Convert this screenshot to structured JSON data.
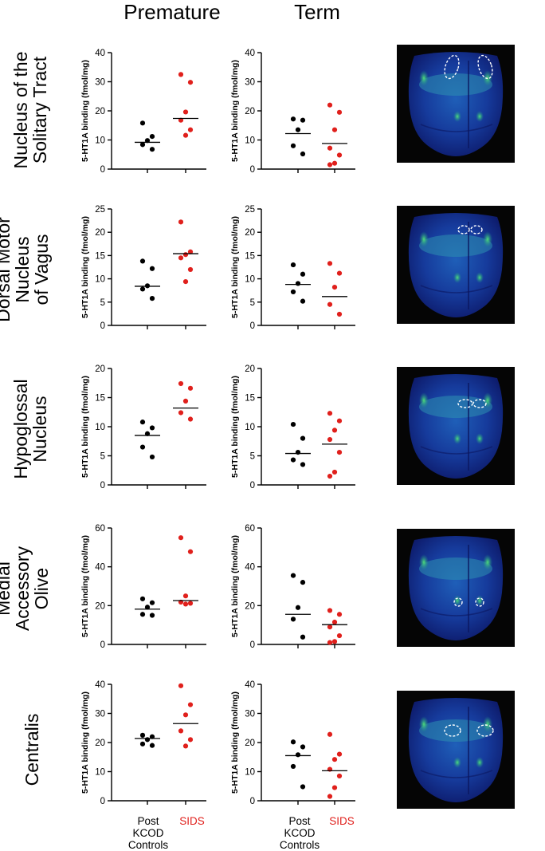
{
  "column_titles": [
    "Premature",
    "Term"
  ],
  "row_labels": [
    [
      "Nucleus of the",
      "Solitary Tract"
    ],
    [
      "Dorsal Motor",
      "Nucleus",
      "of Vagus"
    ],
    [
      "Hypoglossal",
      "Nucleus"
    ],
    [
      "Medial",
      "Accessory",
      "Olive"
    ],
    [
      "Centralis"
    ]
  ],
  "x_labels": {
    "controls": [
      "Post",
      "KCOD",
      "Controls"
    ],
    "sids": "SIDS"
  },
  "colors": {
    "controls": "#000000",
    "sids": "#e0201c"
  },
  "chart_data": [
    {
      "type": "scatter",
      "row": 0,
      "group": "Premature",
      "ylabel": "5-HT1A binding (fmol/mg)",
      "ylim": [
        0,
        40
      ],
      "yticks": [
        0,
        10,
        20,
        30,
        40
      ],
      "categories": [
        "Post KCOD Controls",
        "SIDS"
      ],
      "series": [
        {
          "name": "Post KCOD Controls",
          "values": [
            15.8,
            11.2,
            9.8,
            8.4,
            6.8
          ],
          "median": 9.2
        },
        {
          "name": "SIDS",
          "values": [
            32.5,
            29.8,
            19.6,
            16.8,
            13.5,
            11.6
          ],
          "median": 17.4
        }
      ]
    },
    {
      "type": "scatter",
      "row": 0,
      "group": "Term",
      "ylabel": "5-HT1A binding (fmol/mg)",
      "ylim": [
        0,
        40
      ],
      "yticks": [
        0,
        10,
        20,
        30,
        40
      ],
      "categories": [
        "Post KCOD Controls",
        "SIDS"
      ],
      "series": [
        {
          "name": "Post KCOD Controls",
          "values": [
            17.2,
            16.8,
            13.5,
            8.0,
            5.2
          ],
          "median": 12.2
        },
        {
          "name": "SIDS",
          "values": [
            22.0,
            19.5,
            13.5,
            7.2,
            4.8,
            2.0,
            1.5
          ],
          "median": 8.8
        }
      ]
    },
    {
      "type": "scatter",
      "row": 1,
      "group": "Premature",
      "ylabel": "5-HT1A binding (fmol/mg)",
      "ylim": [
        0,
        25
      ],
      "yticks": [
        0,
        5,
        10,
        15,
        20,
        25
      ],
      "categories": [
        "Post KCOD Controls",
        "SIDS"
      ],
      "series": [
        {
          "name": "Post KCOD Controls",
          "values": [
            13.8,
            12.2,
            8.5,
            7.8,
            5.8
          ],
          "median": 8.4
        },
        {
          "name": "SIDS",
          "values": [
            22.2,
            15.8,
            15.2,
            14.5,
            12.0,
            9.4
          ],
          "median": 15.4
        }
      ]
    },
    {
      "type": "scatter",
      "row": 1,
      "group": "Term",
      "ylabel": "5-HT1A binding (fmol/mg)",
      "ylim": [
        0,
        25
      ],
      "yticks": [
        0,
        5,
        10,
        15,
        20,
        25
      ],
      "categories": [
        "Post KCOD Controls",
        "SIDS"
      ],
      "series": [
        {
          "name": "Post KCOD Controls",
          "values": [
            13.0,
            11.0,
            9.0,
            7.2,
            5.2
          ],
          "median": 8.8
        },
        {
          "name": "SIDS",
          "values": [
            13.3,
            11.2,
            8.2,
            4.5,
            2.4
          ],
          "median": 6.2
        }
      ]
    },
    {
      "type": "scatter",
      "row": 2,
      "group": "Premature",
      "ylabel": "5-HT1A binding (fmol/mg)",
      "ylim": [
        0,
        20
      ],
      "yticks": [
        0,
        5,
        10,
        15,
        20
      ],
      "categories": [
        "Post KCOD Controls",
        "SIDS"
      ],
      "series": [
        {
          "name": "Post KCOD Controls",
          "values": [
            10.8,
            9.8,
            8.8,
            6.5,
            4.8
          ],
          "median": 8.5
        },
        {
          "name": "SIDS",
          "values": [
            17.4,
            16.6,
            14.4,
            12.4,
            11.3
          ],
          "median": 13.2
        }
      ]
    },
    {
      "type": "scatter",
      "row": 2,
      "group": "Term",
      "ylabel": "5-HT1A binding (fmol/mg)",
      "ylim": [
        0,
        20
      ],
      "yticks": [
        0,
        5,
        10,
        15,
        20
      ],
      "categories": [
        "Post KCOD Controls",
        "SIDS"
      ],
      "series": [
        {
          "name": "Post KCOD Controls",
          "values": [
            10.4,
            8.0,
            5.6,
            4.3,
            3.5
          ],
          "median": 5.4
        },
        {
          "name": "SIDS",
          "values": [
            12.3,
            11.0,
            9.4,
            7.8,
            5.6,
            2.2,
            1.5
          ],
          "median": 7.0
        }
      ]
    },
    {
      "type": "scatter",
      "row": 3,
      "group": "Premature",
      "ylabel": "5-HT1A binding (fmol/mg)",
      "ylim": [
        0,
        60
      ],
      "yticks": [
        0,
        20,
        40,
        60
      ],
      "categories": [
        "Post KCOD Controls",
        "SIDS"
      ],
      "series": [
        {
          "name": "Post KCOD Controls",
          "values": [
            23.5,
            21.5,
            19.2,
            15.5,
            15.0
          ],
          "median": 18.2
        },
        {
          "name": "SIDS",
          "values": [
            55.0,
            47.8,
            25.0,
            21.8,
            21.2,
            20.8
          ],
          "median": 22.6
        }
      ]
    },
    {
      "type": "scatter",
      "row": 3,
      "group": "Term",
      "ylabel": "5-HT1A binding (fmol/mg)",
      "ylim": [
        0,
        60
      ],
      "yticks": [
        0,
        20,
        40,
        60
      ],
      "categories": [
        "Post KCOD Controls",
        "SIDS"
      ],
      "series": [
        {
          "name": "Post KCOD Controls",
          "values": [
            35.5,
            32.0,
            19.0,
            13.0,
            3.8
          ],
          "median": 15.5
        },
        {
          "name": "SIDS",
          "values": [
            17.5,
            15.5,
            11.5,
            9.0,
            4.5,
            1.5,
            1.0
          ],
          "median": 10.2
        }
      ]
    },
    {
      "type": "scatter",
      "row": 4,
      "group": "Premature",
      "ylabel": "5-HT1A binding (fmol/mg)",
      "ylim": [
        0,
        40
      ],
      "yticks": [
        0,
        10,
        20,
        30,
        40
      ],
      "categories": [
        "Post KCOD Controls",
        "SIDS"
      ],
      "series": [
        {
          "name": "Post KCOD Controls",
          "values": [
            22.5,
            22.0,
            21.0,
            19.5,
            19.0
          ],
          "median": 21.4
        },
        {
          "name": "SIDS",
          "values": [
            39.5,
            33.0,
            29.5,
            24.0,
            21.0,
            18.8
          ],
          "median": 26.5
        }
      ]
    },
    {
      "type": "scatter",
      "row": 4,
      "group": "Term",
      "ylabel": "5-HT1A binding (fmol/mg)",
      "ylim": [
        0,
        40
      ],
      "yticks": [
        0,
        10,
        20,
        30,
        40
      ],
      "categories": [
        "Post KCOD Controls",
        "SIDS"
      ],
      "series": [
        {
          "name": "Post KCOD Controls",
          "values": [
            20.2,
            18.5,
            15.8,
            11.8,
            4.8
          ],
          "median": 15.5
        },
        {
          "name": "SIDS",
          "values": [
            22.8,
            16.0,
            14.2,
            10.8,
            8.5,
            4.5,
            1.5
          ],
          "median": 10.3
        }
      ]
    }
  ]
}
